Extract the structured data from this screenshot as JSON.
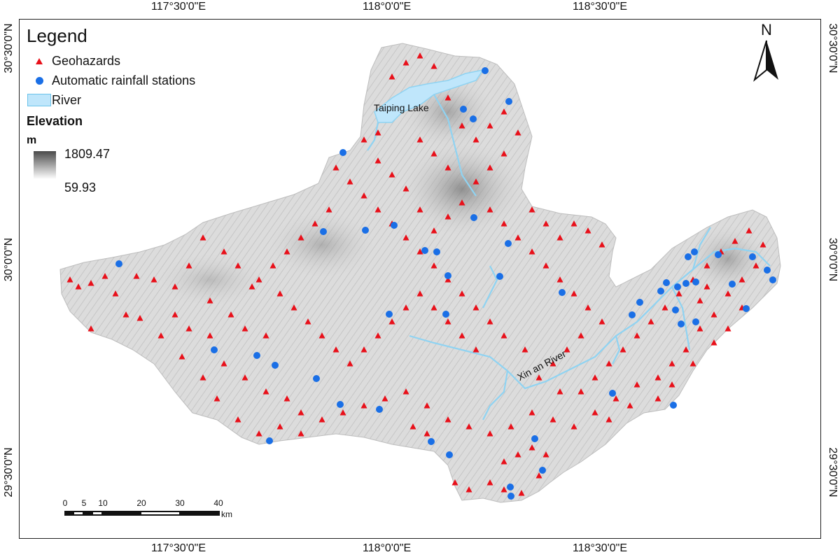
{
  "legend": {
    "title": "Legend",
    "items": [
      {
        "label": "Geohazards",
        "symbol": "red-triangle",
        "color": "#e8101a"
      },
      {
        "label": "Automatic rainfall stations",
        "symbol": "blue-circle",
        "color": "#1a6fe6"
      },
      {
        "label": "River",
        "symbol": "light-blue-rectangle",
        "color": "#bfe6fb"
      }
    ],
    "elevation_title": "Elevation",
    "elevation_unit": "m",
    "elevation_max": "1809.47",
    "elevation_min": "59.93"
  },
  "graticule": {
    "top": [
      "117°30'0\"E",
      "118°0'0\"E",
      "118°30'0\"E"
    ],
    "bottom": [
      "117°30'0\"E",
      "118°0'0\"E",
      "118°30'0\"E"
    ],
    "left": [
      "30°30'0\"N",
      "30°0'0\"N",
      "29°30'0\"N"
    ],
    "right": [
      "30°30'0\"N",
      "30°0'0\"N",
      "29°30'0\"N"
    ]
  },
  "north_arrow": {
    "label": "N",
    "icon": "north-arrow-icon"
  },
  "scale_bar": {
    "ticks": [
      "0",
      "5",
      "10",
      "20",
      "30",
      "40"
    ],
    "unit": "km"
  },
  "labels": {
    "lake": "Taiping Lake",
    "river": "Xin an River"
  },
  "colors": {
    "geohazard": "#e8101a",
    "station": "#1a6fe6",
    "river": "#8fd3f2",
    "terrain_light": "#e2e2e2",
    "terrain_dark": "#7a7a7a"
  }
}
